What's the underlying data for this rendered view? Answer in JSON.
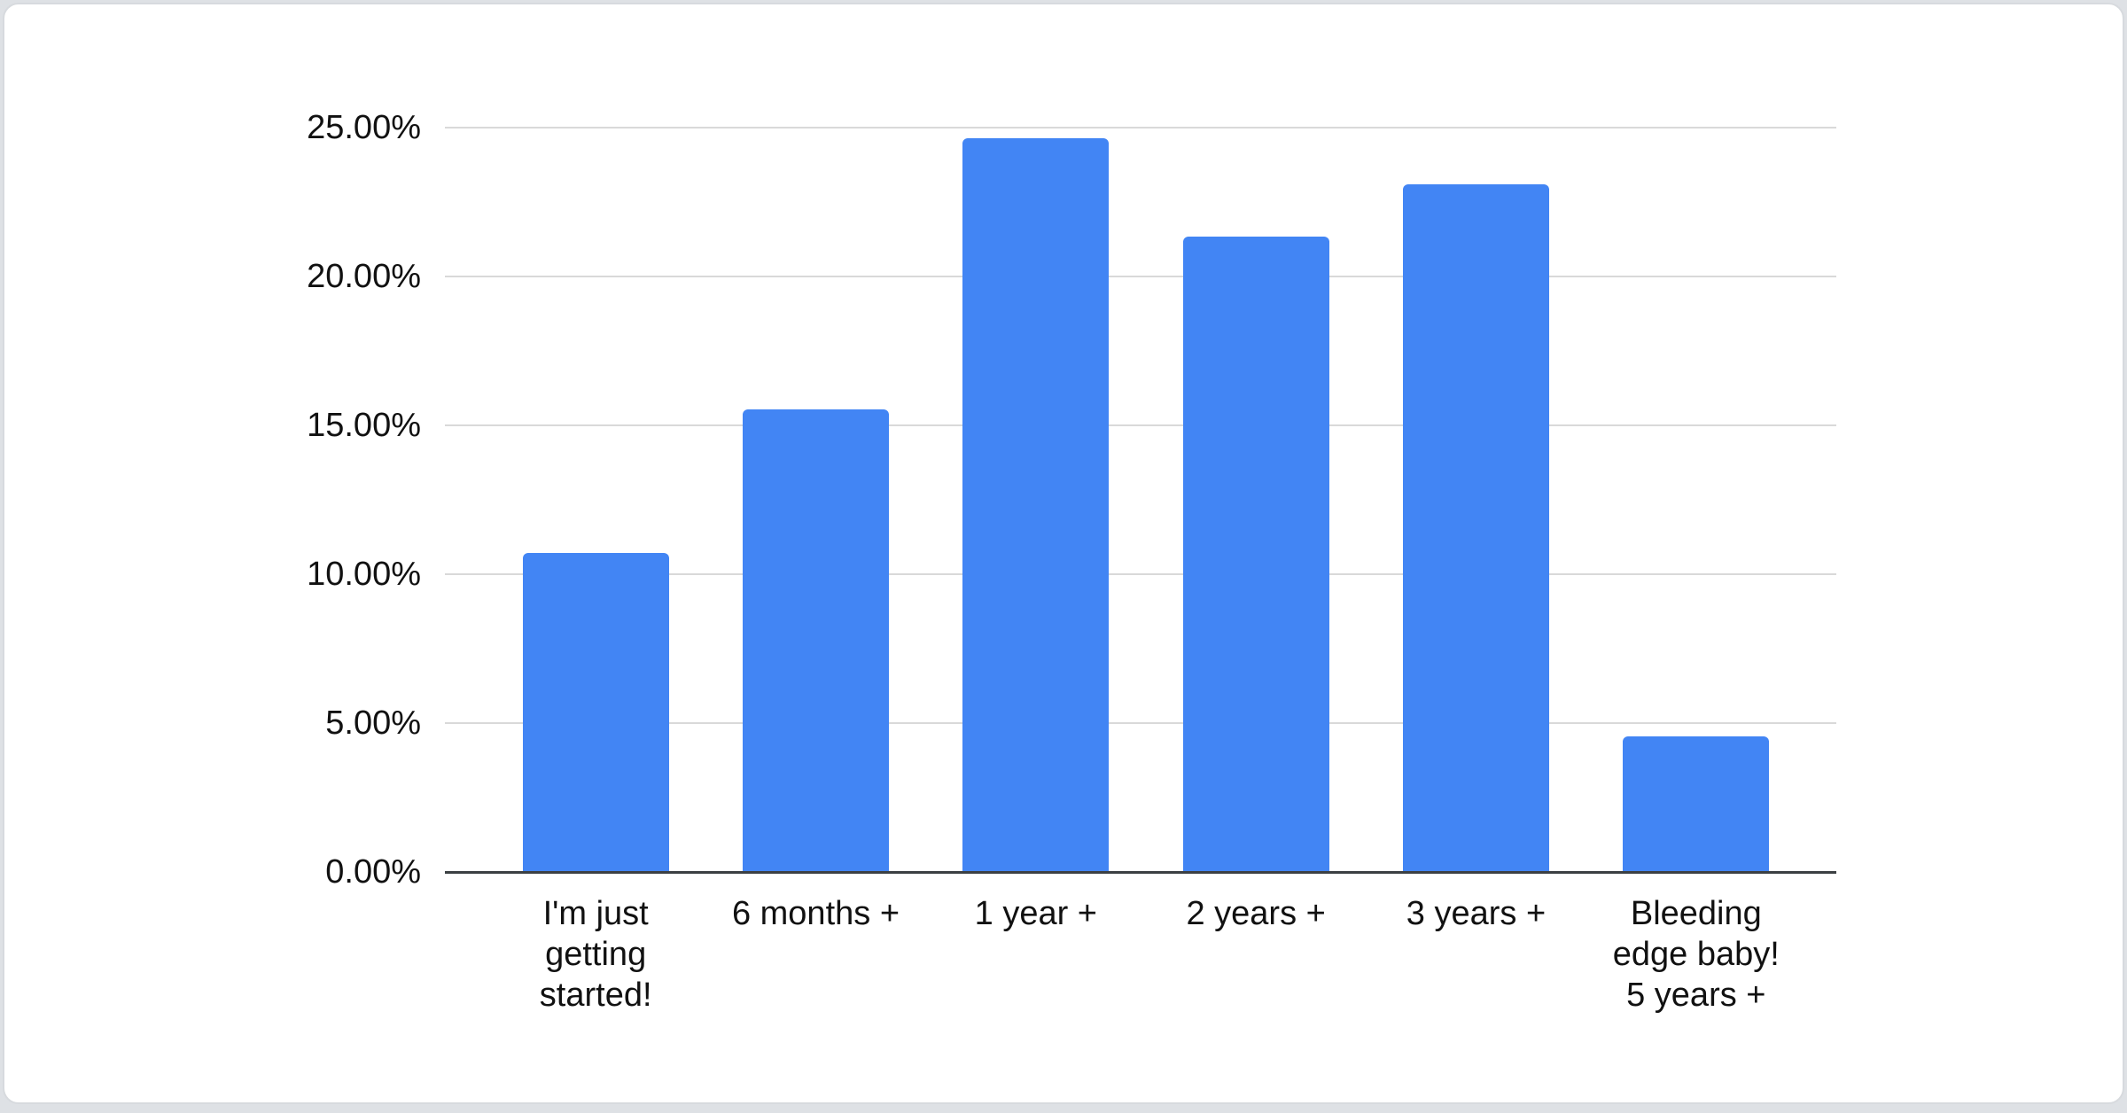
{
  "page": {
    "background_color": "#dee1e5",
    "card_background_color": "#ffffff",
    "card_border_color": "#d7dade"
  },
  "chart_data": {
    "type": "bar",
    "title": "",
    "categories": [
      "I'm just getting started!",
      "6 months +",
      "1 year +",
      "2 years +",
      "3 years +",
      "Bleeding edge baby! 5 years +"
    ],
    "category_lines": [
      [
        "I'm just",
        "getting",
        "started!"
      ],
      [
        "6 months +"
      ],
      [
        "1 year +"
      ],
      [
        "2 years +"
      ],
      [
        "3 years +"
      ],
      [
        "Bleeding",
        "edge baby!",
        "5 years +"
      ]
    ],
    "values": [
      10.7,
      15.55,
      24.65,
      21.35,
      23.1,
      4.55
    ],
    "value_unit": "percent",
    "xlabel": "",
    "ylabel": "",
    "ylim": [
      0,
      25
    ],
    "y_tick_step": 5,
    "y_tick_labels": [
      "0.00%",
      "5.00%",
      "10.00%",
      "15.00%",
      "20.00%",
      "25.00%"
    ],
    "grid": true,
    "legend": "none",
    "bar_color": "#4285F4",
    "gridline_color": "#d9d9d9",
    "axis_line_color": "#3c4043",
    "label_color": "#111111"
  }
}
